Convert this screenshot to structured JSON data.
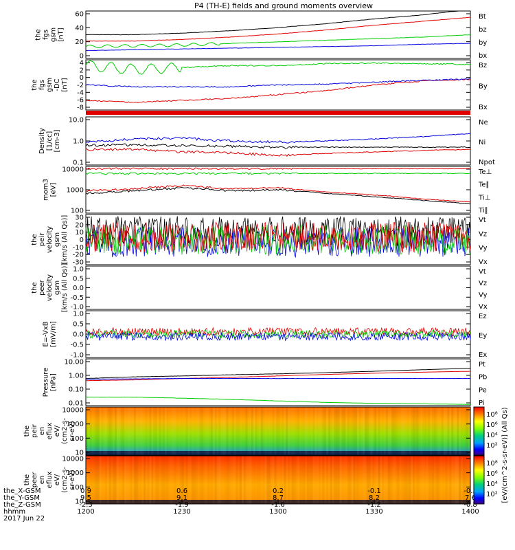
{
  "title": "P4 (TH-E) fields and ground moments overview",
  "colors": {
    "black": "#000000",
    "red": "#e00000",
    "green": "#00cc00",
    "blue": "#0000e0"
  },
  "panels": [
    {
      "id": "fgs-gsm",
      "ylabel": [
        "the",
        "fgs",
        "gsm",
        "[nT]"
      ],
      "yticks": [
        "60",
        "40",
        "20",
        "0"
      ],
      "legend": [
        {
          "text": "Bt",
          "color": "black"
        },
        {
          "text": "bz",
          "color": "red"
        },
        {
          "text": "by",
          "color": "green"
        },
        {
          "text": "bx",
          "color": "blue"
        }
      ]
    },
    {
      "id": "fgs-gsm-dc",
      "ylabel": [
        "the",
        "fgs",
        "gsm",
        "-DC",
        "[nT]"
      ],
      "yticks": [
        "4",
        "2",
        "0",
        "-2",
        "-4",
        "-6",
        "-8"
      ],
      "legend": [
        {
          "text": "Bz",
          "color": "red"
        },
        {
          "text": "By",
          "color": "green"
        },
        {
          "text": "Bx",
          "color": "blue"
        }
      ]
    },
    {
      "id": "density",
      "ylabel": [
        "Density",
        "[1/cc]",
        "[cm-3]"
      ],
      "yticks": [
        "10.0",
        "1.0",
        "0.1"
      ],
      "legend": [
        {
          "text": "Ne",
          "color": "red"
        },
        {
          "text": "Ni",
          "color": "black"
        },
        {
          "text": "Npot",
          "color": "blue"
        }
      ]
    },
    {
      "id": "temperature",
      "ylabel": [
        "mom3",
        "[eV]"
      ],
      "yticks": [
        "10000",
        "1000",
        "100"
      ],
      "legend": [
        {
          "text": "Te⊥",
          "color": "red"
        },
        {
          "text": "Te∥",
          "color": "black"
        },
        {
          "text": "Ti⊥",
          "color": "red"
        },
        {
          "text": "Ti∥",
          "color": "green"
        }
      ]
    },
    {
      "id": "peir-velocity",
      "ylabel": [
        "the",
        "peir",
        "velocity",
        "gsm",
        "[km/s (All Qs)]"
      ],
      "yticks": [
        "30",
        "20",
        "10",
        "0",
        "-10",
        "-20",
        "-30"
      ],
      "legend": [
        {
          "text": "Vt",
          "color": "black"
        },
        {
          "text": "Vz",
          "color": "red"
        },
        {
          "text": "Vy",
          "color": "green"
        },
        {
          "text": "Vx",
          "color": "blue"
        }
      ]
    },
    {
      "id": "peer-velocity",
      "ylabel": [
        "the",
        "peer",
        "velocity",
        "gsm",
        "[km/s (All Qs)]"
      ],
      "yticks": [
        "1.0",
        "0.5",
        "0.0",
        "-0.5",
        "-1.0"
      ],
      "legend": [
        {
          "text": "Vt",
          "color": "black"
        },
        {
          "text": "Vz",
          "color": "red"
        },
        {
          "text": "Vy",
          "color": "green"
        },
        {
          "text": "Vx",
          "color": "blue"
        }
      ]
    },
    {
      "id": "efield",
      "ylabel": [
        "E=-VxB",
        "[mV/m]"
      ],
      "yticks": [
        "1.0",
        "0.5",
        "0.0",
        "-0.5",
        "-1.0"
      ],
      "legend": [
        {
          "text": "Ez",
          "color": "red"
        },
        {
          "text": "Ey",
          "color": "green"
        },
        {
          "text": "Ex",
          "color": "blue"
        }
      ]
    },
    {
      "id": "pressure",
      "ylabel": [
        "Pressure",
        "[nPa]"
      ],
      "yticks": [
        "10.00",
        "1.00",
        "0.10",
        "0.01"
      ],
      "legend": [
        {
          "text": "Pt",
          "color": "black"
        },
        {
          "text": "Pb",
          "color": "red"
        },
        {
          "text": "Pe",
          "color": "green"
        },
        {
          "text": "Pi",
          "color": "blue"
        }
      ]
    },
    {
      "id": "peir-eflux",
      "ylabel": [
        "the",
        "peir",
        "en",
        "eflux",
        "eV/",
        "(cm2-s-",
        "sr-eV)"
      ],
      "yticks": [
        "10000",
        "1000",
        "100",
        "10"
      ],
      "legend": []
    },
    {
      "id": "peer-eflux",
      "ylabel": [
        "the",
        "peer",
        "en",
        "eflux",
        "eV/",
        "(cm2-s-",
        "sr-eV)"
      ],
      "yticks": [
        "10000",
        "1000",
        "100",
        "10"
      ],
      "legend": []
    }
  ],
  "colorbar": {
    "ticks": [
      "10⁸",
      "10⁶",
      "10⁴",
      "10²"
    ],
    "label": "[eV/(cm^2-s-sr-eV)] (All Qs)"
  },
  "x_axis": {
    "row_labels": [
      "the_X-GSM",
      "the_Y-GSM",
      "the_Z-GSM",
      "hhmm",
      "2017 Jun 22"
    ],
    "ticks": [
      {
        "x": "0.9",
        "y": "9.5",
        "z": "-2.3",
        "t": "1200"
      },
      {
        "x": "0.6",
        "y": "9.1",
        "z": "-1.9",
        "t": "1230"
      },
      {
        "x": "0.2",
        "y": "8.7",
        "z": "-1.6",
        "t": "1300"
      },
      {
        "x": "-0.1",
        "y": "8.2",
        "z": "-1.2",
        "t": "1330"
      },
      {
        "x": "-0.5",
        "y": "7.6",
        "z": "-0.8",
        "t": "1400"
      }
    ]
  },
  "chart_data": [
    {
      "type": "line",
      "title": "P4 (TH-E) fields and ground moments overview",
      "ylabel": "the fgs gsm [nT]",
      "x": [
        "1200",
        "1215",
        "1230",
        "1245",
        "1300",
        "1315",
        "1330",
        "1345",
        "1400"
      ],
      "ylim": [
        0,
        60
      ],
      "series": [
        {
          "name": "Bt",
          "values": [
            30,
            30,
            32,
            35,
            39,
            44,
            50,
            55,
            62
          ]
        },
        {
          "name": "bz",
          "values": [
            22,
            22,
            24,
            27,
            31,
            36,
            42,
            47,
            52
          ]
        },
        {
          "name": "by",
          "values": [
            15,
            16,
            17,
            19,
            21,
            23,
            25,
            27,
            30
          ]
        },
        {
          "name": "bx",
          "values": [
            10,
            11,
            12,
            13,
            14,
            15,
            16,
            18,
            19
          ]
        }
      ]
    },
    {
      "type": "line",
      "ylabel": "the fgs gsm -DC [nT]",
      "x": [
        "1200",
        "1215",
        "1230",
        "1245",
        "1300",
        "1315",
        "1330",
        "1345",
        "1400"
      ],
      "ylim": [
        -9,
        4
      ],
      "series": [
        {
          "name": "Bz",
          "values": [
            -6.5,
            -7.0,
            -6.5,
            -6.0,
            -5.0,
            -4.0,
            -2.5,
            -1.5,
            -1.0
          ]
        },
        {
          "name": "By",
          "values": [
            2.5,
            1.5,
            2.0,
            2.5,
            2.5,
            3.0,
            3.2,
            3.0,
            2.8
          ]
        },
        {
          "name": "Bx",
          "values": [
            -2.5,
            -3.0,
            -3.0,
            -3.0,
            -2.5,
            -2.3,
            -1.8,
            -1.3,
            -1.0
          ]
        }
      ]
    },
    {
      "type": "line",
      "ylabel": "Density [1/cc] [cm-3]",
      "yscale": "log",
      "x": [
        "1200",
        "1215",
        "1230",
        "1245",
        "1300",
        "1315",
        "1330",
        "1345",
        "1400"
      ],
      "ylim": [
        0.1,
        10
      ],
      "series": [
        {
          "name": "Ne",
          "values": [
            0.45,
            0.45,
            0.35,
            0.32,
            0.25,
            0.3,
            0.35,
            0.4,
            0.45
          ]
        },
        {
          "name": "Ni",
          "values": [
            0.65,
            0.7,
            0.65,
            0.6,
            0.55,
            0.55,
            0.55,
            0.55,
            0.55
          ]
        },
        {
          "name": "Npot",
          "values": [
            0.9,
            1.2,
            1.3,
            1.0,
            0.9,
            1.0,
            1.2,
            1.5,
            2.0
          ]
        }
      ]
    },
    {
      "type": "line",
      "ylabel": "mom3 [eV]",
      "yscale": "log",
      "x": [
        "1200",
        "1215",
        "1230",
        "1245",
        "1300",
        "1315",
        "1330",
        "1345",
        "1400"
      ],
      "ylim": [
        100,
        10000
      ],
      "series": [
        {
          "name": "Te⊥",
          "values": [
            8000,
            8000,
            8000,
            8000,
            8000,
            8000,
            8000,
            8000,
            8000
          ]
        },
        {
          "name": "Te∥",
          "values": [
            700,
            900,
            1200,
            900,
            1000,
            700,
            500,
            350,
            250
          ]
        },
        {
          "name": "Ti⊥",
          "values": [
            900,
            1100,
            1500,
            1100,
            1200,
            800,
            600,
            400,
            300
          ]
        },
        {
          "name": "Ti∥",
          "values": [
            5000,
            5000,
            5000,
            5000,
            5000,
            5000,
            5000,
            5000,
            5000
          ]
        }
      ]
    },
    {
      "type": "line",
      "ylabel": "the peir velocity gsm [km/s (All Qs)]",
      "x": [
        "1200",
        "1215",
        "1230",
        "1245",
        "1300",
        "1315",
        "1330",
        "1345",
        "1400"
      ],
      "ylim": [
        -30,
        30
      ],
      "series": [
        {
          "name": "Vt",
          "values": [
            10,
            10,
            10,
            10,
            10,
            10,
            10,
            10,
            10
          ]
        },
        {
          "name": "Vz",
          "values": [
            3,
            3,
            3,
            3,
            3,
            3,
            3,
            3,
            3
          ]
        },
        {
          "name": "Vy",
          "values": [
            0,
            0,
            0,
            0,
            0,
            0,
            0,
            0,
            0
          ]
        },
        {
          "name": "Vx",
          "values": [
            -3,
            -3,
            -3,
            -3,
            -3,
            -3,
            -3,
            -3,
            -3
          ]
        }
      ]
    },
    {
      "type": "line",
      "ylabel": "the peer velocity gsm [km/s (All Qs)]",
      "x": [],
      "ylim": [
        -1,
        1
      ],
      "series": []
    },
    {
      "type": "line",
      "ylabel": "E=-VxB [mV/m]",
      "x": [
        "1200",
        "1215",
        "1230",
        "1245",
        "1300",
        "1315",
        "1330",
        "1345",
        "1400"
      ],
      "ylim": [
        -1,
        1
      ],
      "series": [
        {
          "name": "Ez",
          "values": [
            0.1,
            0.1,
            0.1,
            0.1,
            0.1,
            0.1,
            0.1,
            0.1,
            0.1
          ]
        },
        {
          "name": "Ey",
          "values": [
            0,
            0,
            0,
            0,
            0,
            0,
            0,
            0,
            0
          ]
        },
        {
          "name": "Ex",
          "values": [
            -0.1,
            -0.1,
            -0.1,
            -0.1,
            -0.1,
            -0.1,
            -0.1,
            -0.1,
            -0.1
          ]
        }
      ]
    },
    {
      "type": "line",
      "ylabel": "Pressure [nPa]",
      "yscale": "log",
      "x": [
        "1200",
        "1215",
        "1230",
        "1245",
        "1300",
        "1315",
        "1330",
        "1345",
        "1400"
      ],
      "ylim": [
        0.01,
        10
      ],
      "series": [
        {
          "name": "Pt",
          "values": [
            0.55,
            0.7,
            0.8,
            0.95,
            1.1,
            1.3,
            1.6,
            2.0,
            2.5
          ]
        },
        {
          "name": "Pb",
          "values": [
            0.4,
            0.45,
            0.55,
            0.65,
            0.8,
            1.0,
            1.2,
            1.4,
            1.6
          ]
        },
        {
          "name": "Pe",
          "values": [
            0.035,
            0.035,
            0.03,
            0.025,
            0.02,
            0.016,
            0.014,
            0.013,
            0.012
          ]
        },
        {
          "name": "Pi",
          "values": [
            0.5,
            0.52,
            0.55,
            0.55,
            0.55,
            0.55,
            0.55,
            0.55,
            0.55
          ]
        }
      ]
    },
    {
      "type": "heatmap",
      "ylabel": "the peir en eflux eV/(cm2-s-sr-eV)",
      "yscale": "log",
      "ylim": [
        5,
        20000
      ],
      "zlabel": "[eV/(cm^2-s-sr-eV)] (All Qs)",
      "zlim": [
        100,
        100000000
      ]
    },
    {
      "type": "heatmap",
      "ylabel": "the peer en eflux eV/(cm2-s-sr-eV)",
      "yscale": "log",
      "ylim": [
        5,
        20000
      ],
      "zlabel": "[eV/(cm^2-s-sr-eV)] (All Qs)",
      "zlim": [
        100,
        100000000
      ]
    }
  ]
}
